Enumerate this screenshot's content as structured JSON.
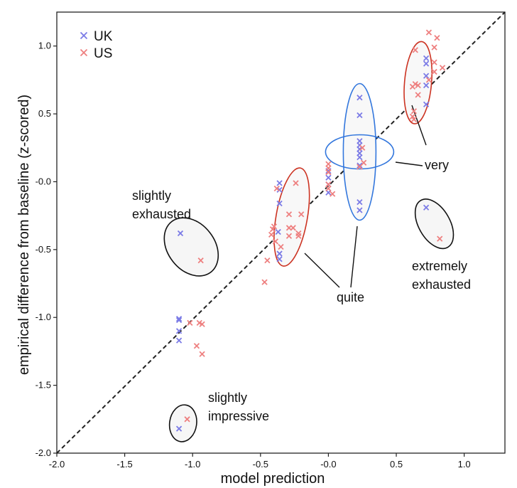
{
  "chart_data": {
    "type": "scatter",
    "xlabel": "model prediction",
    "ylabel": "empirical difference from baseline (z-scored)",
    "xlim": [
      -2.0,
      1.3
    ],
    "ylim": [
      -2.0,
      1.25
    ],
    "x_ticks": [
      -2.0,
      -1.5,
      -1.0,
      -0.5,
      0.0,
      0.5,
      1.0
    ],
    "x_tick_labels": [
      "-2.0",
      "-1.5",
      "-1.0",
      "-0.5",
      "-0.0",
      "0.5",
      "1.0"
    ],
    "y_ticks": [
      -2.0,
      -1.5,
      -1.0,
      -0.5,
      0.0,
      0.5,
      1.0
    ],
    "y_tick_labels": [
      "-2.0",
      "-1.5",
      "-1.0",
      "-0.5",
      "-0.0",
      "0.5",
      "1.0"
    ],
    "grid": false,
    "legend_position": "top-left",
    "reference_line": {
      "style": "dashed",
      "from": [
        -2.0,
        -2.0
      ],
      "to": [
        1.3,
        1.25
      ]
    },
    "series": [
      {
        "name": "UK",
        "color": "#7b7be6",
        "marker": "x",
        "points": [
          [
            -1.1,
            -1.01
          ],
          [
            -1.1,
            -1.02
          ],
          [
            -1.1,
            -1.1
          ],
          [
            -1.1,
            -1.17
          ],
          [
            -1.1,
            -1.82
          ],
          [
            -1.09,
            -0.38
          ],
          [
            -0.36,
            -0.01
          ],
          [
            -0.36,
            -0.06
          ],
          [
            -0.36,
            -0.16
          ],
          [
            -0.36,
            -0.53
          ],
          [
            -0.36,
            -0.57
          ],
          [
            -0.37,
            -0.37
          ],
          [
            0.0,
            -0.08
          ],
          [
            0.0,
            -0.02
          ],
          [
            0.0,
            0.03
          ],
          [
            0.0,
            0.08
          ],
          [
            0.23,
            0.62
          ],
          [
            0.23,
            0.49
          ],
          [
            0.23,
            0.3
          ],
          [
            0.23,
            0.27
          ],
          [
            0.23,
            0.24
          ],
          [
            0.23,
            0.21
          ],
          [
            0.23,
            0.18
          ],
          [
            0.23,
            0.12
          ],
          [
            0.23,
            -0.15
          ],
          [
            0.23,
            -0.21
          ],
          [
            0.72,
            0.91
          ],
          [
            0.72,
            0.87
          ],
          [
            0.72,
            0.78
          ],
          [
            0.72,
            0.71
          ],
          [
            0.72,
            0.57
          ],
          [
            0.72,
            -0.19
          ]
        ]
      },
      {
        "name": "US",
        "color": "#ee8080",
        "marker": "x",
        "points": [
          [
            -1.04,
            -1.75
          ],
          [
            -1.02,
            -1.04
          ],
          [
            -0.97,
            -1.21
          ],
          [
            -0.95,
            -1.04
          ],
          [
            -0.94,
            -0.58
          ],
          [
            -0.93,
            -1.05
          ],
          [
            -0.93,
            -1.27
          ],
          [
            -0.47,
            -0.74
          ],
          [
            -0.45,
            -0.58
          ],
          [
            -0.42,
            -0.39
          ],
          [
            -0.41,
            -0.35
          ],
          [
            -0.4,
            -0.33
          ],
          [
            -0.39,
            -0.44
          ],
          [
            -0.38,
            -0.05
          ],
          [
            -0.35,
            -0.48
          ],
          [
            -0.29,
            -0.24
          ],
          [
            -0.29,
            -0.34
          ],
          [
            -0.29,
            -0.4
          ],
          [
            -0.26,
            -0.34
          ],
          [
            -0.24,
            -0.01
          ],
          [
            -0.22,
            -0.4
          ],
          [
            -0.22,
            -0.38
          ],
          [
            -0.2,
            -0.24
          ],
          [
            0.0,
            0.13
          ],
          [
            0.0,
            0.1
          ],
          [
            0.0,
            0.07
          ],
          [
            0.0,
            -0.02
          ],
          [
            0.0,
            -0.05
          ],
          [
            0.03,
            -0.09
          ],
          [
            0.23,
            0.11
          ],
          [
            0.25,
            0.25
          ],
          [
            0.26,
            0.14
          ],
          [
            0.62,
            0.7
          ],
          [
            0.62,
            0.48
          ],
          [
            0.63,
            0.46
          ],
          [
            0.63,
            0.52
          ],
          [
            0.64,
            0.97
          ],
          [
            0.64,
            0.72
          ],
          [
            0.66,
            0.64
          ],
          [
            0.66,
            0.71
          ],
          [
            0.74,
            1.1
          ],
          [
            0.74,
            0.75
          ],
          [
            0.78,
            0.99
          ],
          [
            0.78,
            0.81
          ],
          [
            0.78,
            0.88
          ],
          [
            0.8,
            1.06
          ],
          [
            0.82,
            -0.42
          ],
          [
            0.84,
            0.84
          ]
        ]
      }
    ],
    "annotations": [
      {
        "text_lines": [
          "slightly",
          "exhausted"
        ],
        "color": "#000000"
      },
      {
        "text_lines": [
          "quite"
        ],
        "color": "#000000"
      },
      {
        "text_lines": [
          "very"
        ],
        "color": "#000000"
      },
      {
        "text_lines": [
          "extremely",
          "exhausted"
        ],
        "color": "#000000"
      },
      {
        "text_lines": [
          "slightly",
          "impressive"
        ],
        "color": "#000000"
      }
    ],
    "ellipses": [
      {
        "label": "slightly exhausted",
        "center": [
          -1.01,
          -0.48
        ],
        "color": "#111111"
      },
      {
        "label": "quite (US)",
        "center": [
          -0.27,
          -0.26
        ],
        "color": "#cc3322"
      },
      {
        "label": "quite (UK)",
        "center": [
          0.23,
          0.22
        ],
        "color": "#3377dd"
      },
      {
        "label": "very",
        "center": [
          0.23,
          0.22
        ],
        "color": "#3377dd"
      },
      {
        "label": "very (US)",
        "center": [
          0.66,
          0.73
        ],
        "color": "#cc3322"
      },
      {
        "label": "extremely exhausted",
        "center": [
          0.78,
          -0.31
        ],
        "color": "#111111"
      },
      {
        "label": "slightly impressive",
        "center": [
          -1.07,
          -1.78
        ],
        "color": "#111111"
      }
    ]
  }
}
